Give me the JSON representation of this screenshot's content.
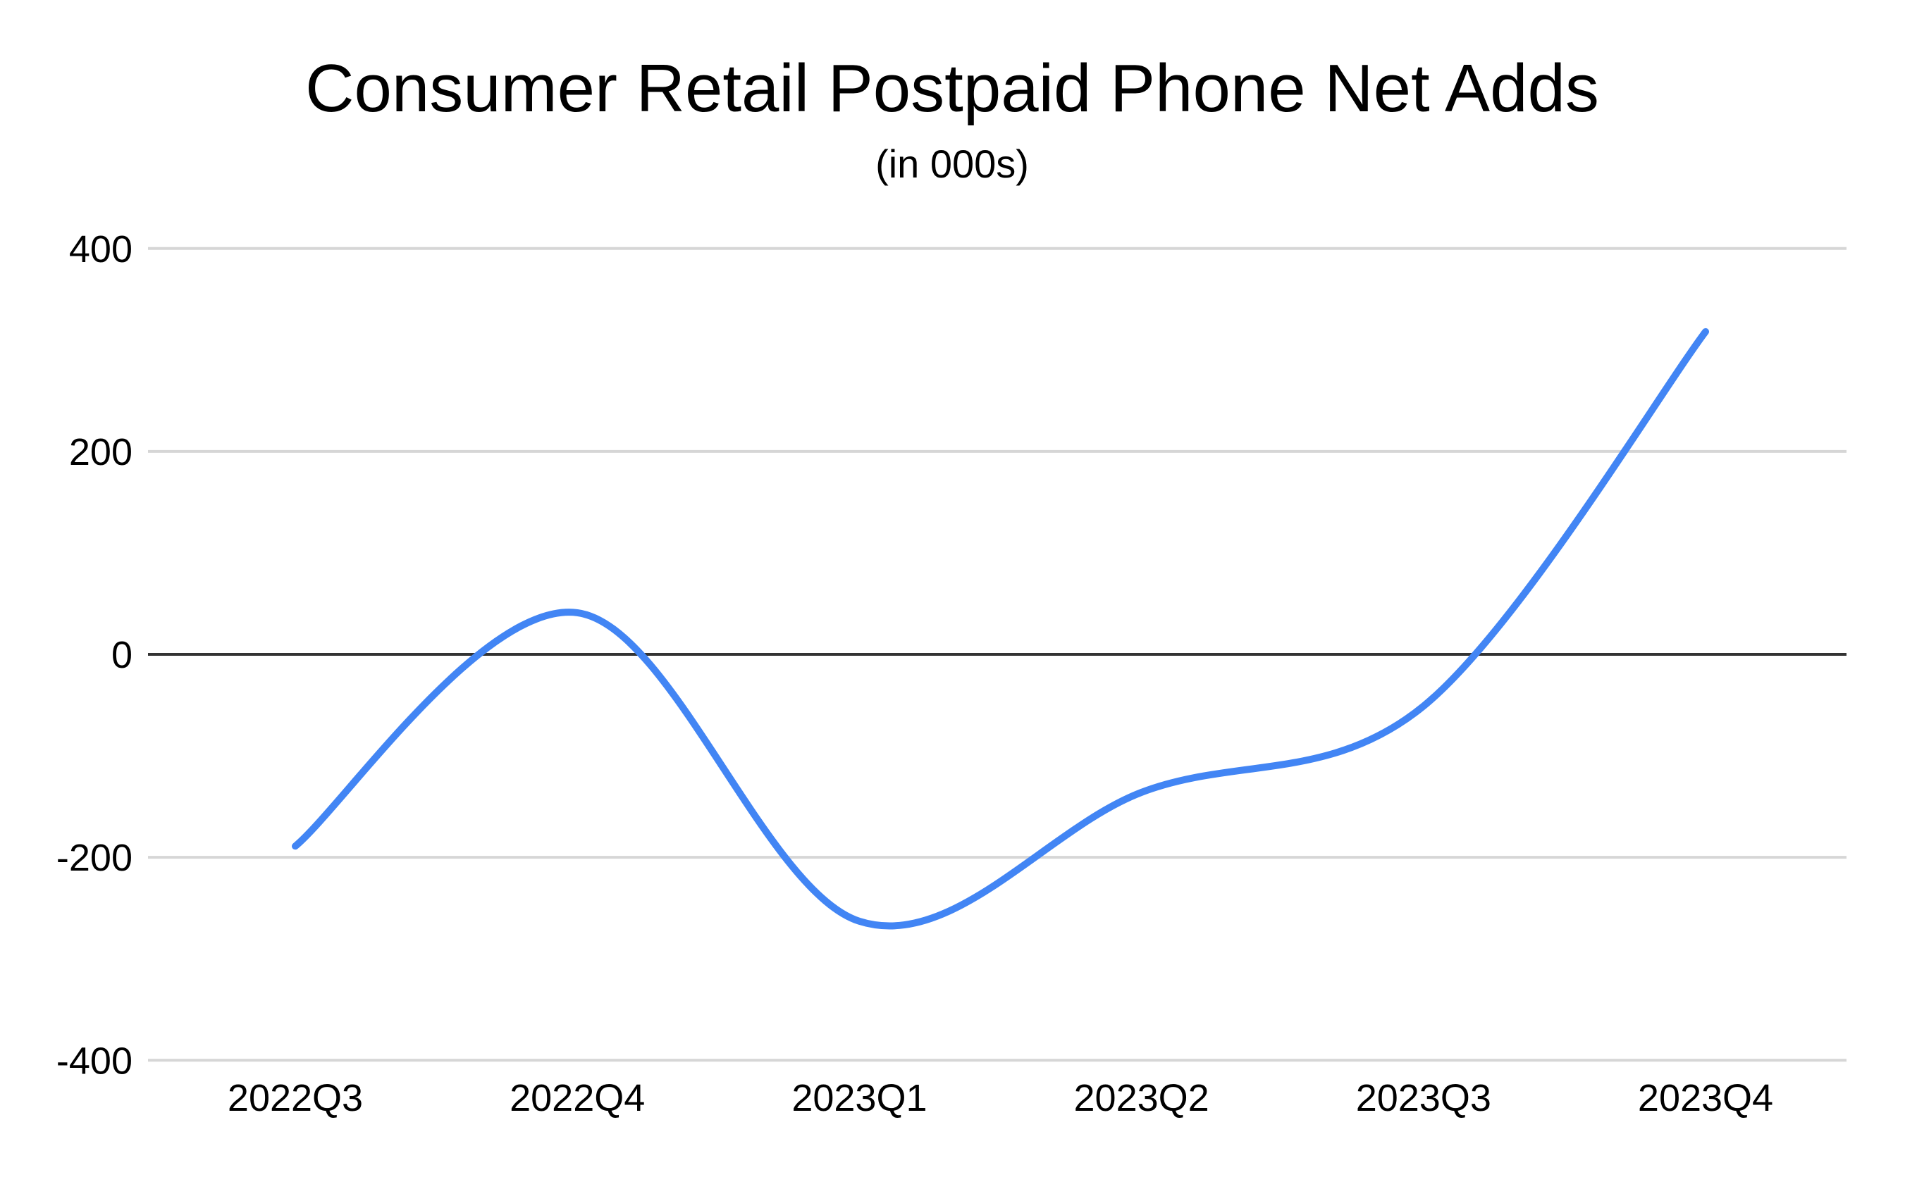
{
  "chart_data": {
    "type": "line",
    "title": "Consumer Retail Postpaid Phone Net Adds",
    "subtitle": "(in 000s)",
    "categories": [
      "2022Q3",
      "2022Q4",
      "2023Q1",
      "2023Q2",
      "2023Q3",
      "2023Q4"
    ],
    "values": [
      -189,
      41,
      -263,
      -136,
      -51,
      318
    ],
    "xlabel": "",
    "ylabel": "",
    "ylim": [
      -400,
      400
    ],
    "yticks": [
      400,
      200,
      0,
      -200,
      -400
    ],
    "grid": true,
    "legend": "none",
    "smooth": true,
    "line_width": 10,
    "colors": {
      "line": "#4285F4",
      "grid": "#D6D6D6",
      "zero_line": "#333333",
      "text": "#000000",
      "background": "#FFFFFF"
    }
  }
}
